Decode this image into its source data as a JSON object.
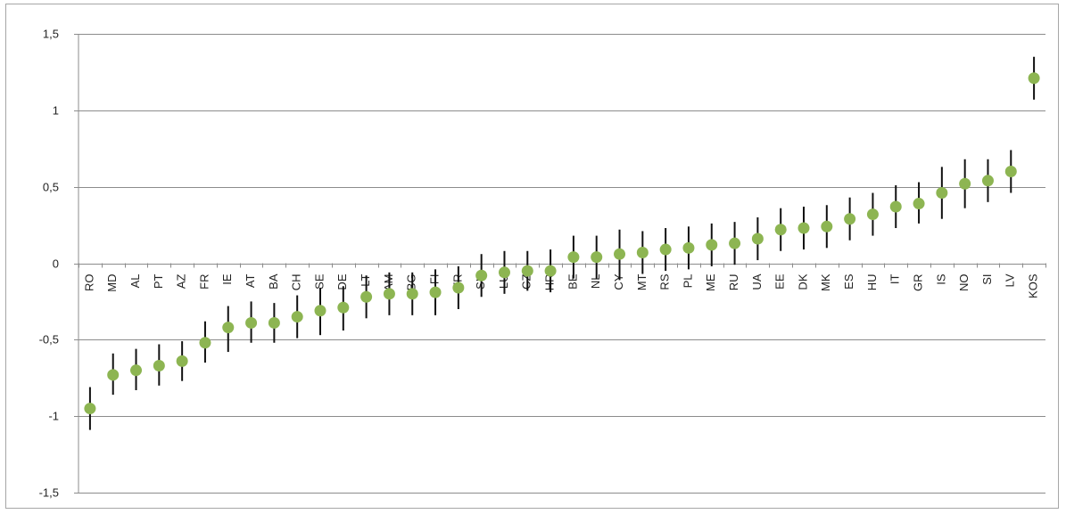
{
  "chart_data": {
    "type": "scatter",
    "title": "",
    "xlabel": "",
    "ylabel": "",
    "ylim": [
      -1.5,
      1.5
    ],
    "yticks": [
      {
        "value": 1.5,
        "label": "1,5"
      },
      {
        "value": 1,
        "label": "1"
      },
      {
        "value": 0.5,
        "label": "0,5"
      },
      {
        "value": 0,
        "label": "0"
      },
      {
        "value": -0.5,
        "label": "-0,5"
      },
      {
        "value": -1,
        "label": "-1"
      },
      {
        "value": -1.5,
        "label": "-1,5"
      }
    ],
    "grid": true,
    "marker_color": "#8db552",
    "errorbar_color": "#111111",
    "categories": [
      "RO",
      "MD",
      "AL",
      "PT",
      "AZ",
      "FR",
      "IE",
      "AT",
      "BA",
      "CH",
      "SE",
      "DE",
      "LT",
      "AM",
      "BG",
      "FI",
      "TR",
      "SK",
      "LU",
      "CZ",
      "HR",
      "BE",
      "NL",
      "CY",
      "MT",
      "RS",
      "PL",
      "ME",
      "RU",
      "UA",
      "EE",
      "DK",
      "MK",
      "ES",
      "HU",
      "IT",
      "GR",
      "IS",
      "NO",
      "SI",
      "LV",
      "KOS"
    ],
    "values": [
      -0.95,
      -0.73,
      -0.7,
      -0.67,
      -0.64,
      -0.52,
      -0.42,
      -0.39,
      -0.39,
      -0.35,
      -0.31,
      -0.29,
      -0.22,
      -0.2,
      -0.2,
      -0.19,
      -0.16,
      -0.08,
      -0.06,
      -0.05,
      -0.05,
      0.04,
      0.04,
      0.06,
      0.07,
      0.09,
      0.1,
      0.12,
      0.13,
      0.16,
      0.22,
      0.23,
      0.24,
      0.29,
      0.32,
      0.37,
      0.39,
      0.46,
      0.52,
      0.54,
      0.6,
      1.21
    ],
    "lower": [
      -1.09,
      -0.86,
      -0.83,
      -0.8,
      -0.77,
      -0.65,
      -0.58,
      -0.52,
      -0.52,
      -0.49,
      -0.47,
      -0.44,
      -0.36,
      -0.34,
      -0.34,
      -0.34,
      -0.3,
      -0.22,
      -0.2,
      -0.18,
      -0.19,
      -0.1,
      -0.1,
      -0.11,
      -0.07,
      -0.05,
      -0.04,
      -0.02,
      -0.01,
      0.02,
      0.08,
      0.09,
      0.1,
      0.15,
      0.18,
      0.23,
      0.26,
      0.29,
      0.36,
      0.4,
      0.46,
      1.07
    ],
    "upper": [
      -0.81,
      -0.59,
      -0.56,
      -0.53,
      -0.51,
      -0.38,
      -0.28,
      -0.25,
      -0.26,
      -0.21,
      -0.16,
      -0.15,
      -0.08,
      -0.06,
      -0.06,
      -0.04,
      -0.02,
      0.06,
      0.08,
      0.08,
      0.09,
      0.18,
      0.18,
      0.22,
      0.21,
      0.23,
      0.24,
      0.26,
      0.27,
      0.3,
      0.36,
      0.37,
      0.38,
      0.43,
      0.46,
      0.51,
      0.53,
      0.63,
      0.68,
      0.68,
      0.74,
      1.35
    ]
  }
}
